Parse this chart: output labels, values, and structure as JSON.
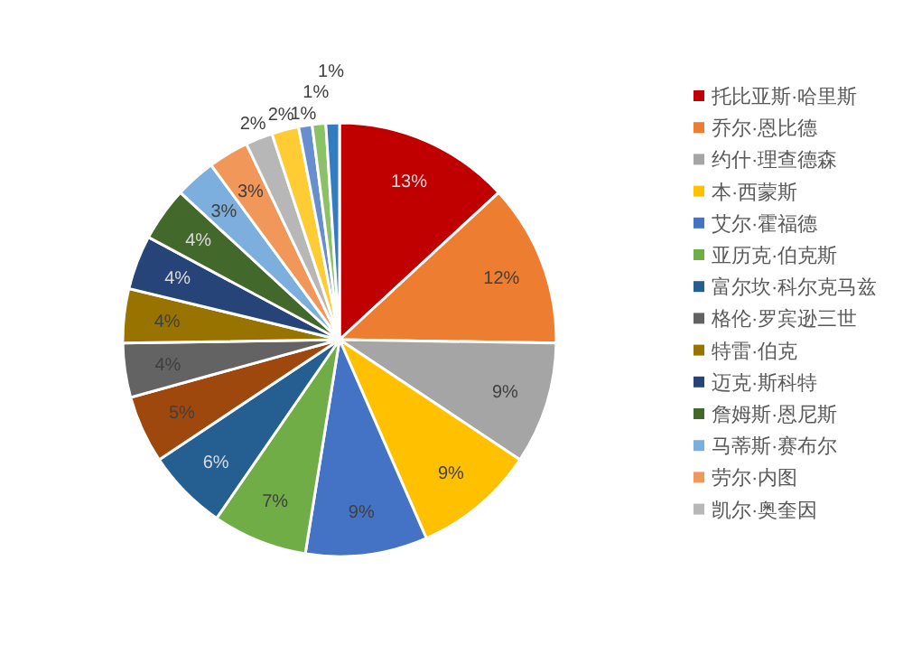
{
  "chart_data": {
    "type": "pie",
    "categories": [
      "托比亚斯·哈里斯",
      "乔尔·恩比德",
      "约什·理查德森",
      "本·西蒙斯",
      "艾尔·霍福德",
      "亚历克·伯克斯",
      "富尔坎·科尔克马兹",
      null,
      "格伦·罗宾逊三世",
      "特雷·伯克",
      "迈克·斯科特",
      "詹姆斯·恩尼斯",
      "马蒂斯·赛布尔",
      "劳尔·内图",
      "凯尔·奥奎因",
      null,
      null,
      null,
      null
    ],
    "values": [
      13,
      12,
      9,
      9,
      9,
      7,
      6,
      5,
      4,
      4,
      4,
      4,
      3,
      3,
      2,
      2,
      1,
      1,
      1
    ],
    "colors": [
      "#c00000",
      "#ed7d31",
      "#a5a5a5",
      "#ffc000",
      "#4472c4",
      "#70ad47",
      "#255e91",
      "#9e480e",
      "#636363",
      "#997300",
      "#264478",
      "#43682b",
      "#7cafdd",
      "#f1975a",
      "#b7b7b7",
      "#ffcd33",
      "#698ed0",
      "#8cc168",
      "#327dc2"
    ],
    "value_labels": [
      "13%",
      "12%",
      "9%",
      "9%",
      "9%",
      "7%",
      "6%",
      "5%",
      "4%",
      "4%",
      "4%",
      "4%",
      "3%",
      "3%",
      "2%",
      "2%",
      "1%",
      "1%",
      "1%"
    ],
    "legend": "right"
  }
}
